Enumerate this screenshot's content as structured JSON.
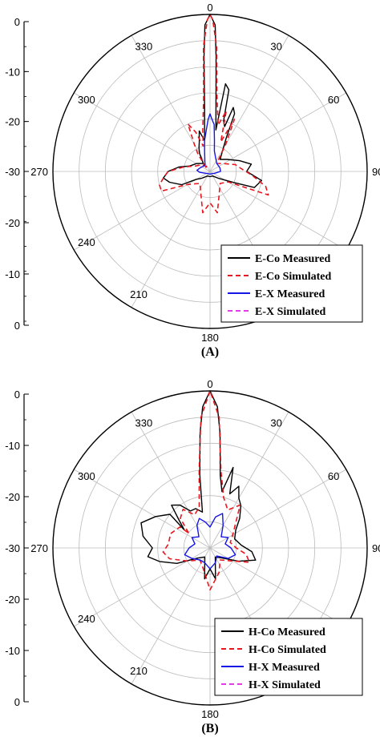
{
  "chart_data": [
    {
      "type": "polar-line",
      "panel_label": "(A)",
      "angle_labels": [
        "0",
        "30",
        "60",
        "90",
        "180",
        "210",
        "240",
        "270",
        "300",
        "330"
      ],
      "radial_tick_labels_upper": [
        "0",
        "-10",
        "-20",
        "-30"
      ],
      "radial_tick_labels_lower": [
        "-20",
        "-10",
        "0"
      ],
      "rlim": [
        -30,
        0
      ],
      "grid": true,
      "legend_position": "bottom-right",
      "series": [
        {
          "name": "E-Co Measured",
          "color": "#000000",
          "dash": "solid",
          "points": [
            [
              -40,
              -28
            ],
            [
              -30,
              -26
            ],
            [
              -25,
              -25
            ],
            [
              -20,
              -24
            ],
            [
              -15,
              -22
            ],
            [
              -10,
              -24
            ],
            [
              -5,
              -18
            ],
            [
              -3,
              -8
            ],
            [
              -2,
              -2
            ],
            [
              0,
              0
            ],
            [
              2,
              -2
            ],
            [
              3,
              -8
            ],
            [
              5,
              -17
            ],
            [
              8,
              -22
            ],
            [
              10,
              -13
            ],
            [
              13,
              -14
            ],
            [
              15,
              -20
            ],
            [
              18,
              -21
            ],
            [
              20,
              -17
            ],
            [
              23,
              -18
            ],
            [
              26,
              -23
            ],
            [
              30,
              -25
            ],
            [
              40,
              -27
            ],
            [
              55,
              -26
            ],
            [
              70,
              -24
            ],
            [
              80,
              -22
            ],
            [
              90,
              -23
            ],
            [
              100,
              -20
            ],
            [
              110,
              -21
            ],
            [
              115,
              -25
            ],
            [
              130,
              -28
            ],
            [
              150,
              -29
            ],
            [
              180,
              -29
            ],
            [
              210,
              -29
            ],
            [
              230,
              -28
            ],
            [
              240,
              -27
            ],
            [
              245,
              -24
            ],
            [
              255,
              -22
            ],
            [
              262,
              -21
            ],
            [
              270,
              -22
            ],
            [
              278,
              -24
            ],
            [
              285,
              -26
            ],
            [
              300,
              -27
            ],
            [
              320,
              -28
            ]
          ]
        },
        {
          "name": "E-Co Simulated",
          "color": "#e8171f",
          "dash": "dashed",
          "points": [
            [
              -45,
              -29
            ],
            [
              -35,
              -26
            ],
            [
              -30,
              -24
            ],
            [
              -25,
              -20
            ],
            [
              -20,
              -22
            ],
            [
              -15,
              -25
            ],
            [
              -10,
              -22
            ],
            [
              -5,
              -16
            ],
            [
              -3,
              -6
            ],
            [
              -1,
              -1
            ],
            [
              0,
              0
            ],
            [
              1,
              -1
            ],
            [
              3,
              -6
            ],
            [
              5,
              -15
            ],
            [
              10,
              -21
            ],
            [
              15,
              -18
            ],
            [
              20,
              -24
            ],
            [
              25,
              -19
            ],
            [
              30,
              -24
            ],
            [
              40,
              -28
            ],
            [
              60,
              -27
            ],
            [
              75,
              -25
            ],
            [
              85,
              -24
            ],
            [
              95,
              -22
            ],
            [
              105,
              -19
            ],
            [
              112,
              -18
            ],
            [
              120,
              -26
            ],
            [
              140,
              -27
            ],
            [
              160,
              -25
            ],
            [
              170,
              -22
            ],
            [
              180,
              -24
            ],
            [
              190,
              -22
            ],
            [
              200,
              -25
            ],
            [
              220,
              -27
            ],
            [
              240,
              -25
            ],
            [
              248,
              -20
            ],
            [
              255,
              -20
            ],
            [
              262,
              -21
            ],
            [
              270,
              -22
            ],
            [
              280,
              -25
            ],
            [
              290,
              -27
            ],
            [
              310,
              -28
            ],
            [
              330,
              -29
            ]
          ]
        },
        {
          "name": "E-X Measured",
          "color": "#1515e6",
          "dash": "solid",
          "points": [
            [
              -15,
              -26
            ],
            [
              -10,
              -24
            ],
            [
              -5,
              -22
            ],
            [
              -2,
              -20
            ],
            [
              0,
              -19
            ],
            [
              2,
              -20
            ],
            [
              5,
              -21
            ],
            [
              8,
              -24
            ],
            [
              12,
              -26
            ],
            [
              20,
              -27
            ],
            [
              40,
              -28
            ],
            [
              70,
              -28
            ],
            [
              90,
              -28
            ],
            [
              110,
              -29
            ],
            [
              180,
              -29.5
            ],
            [
              250,
              -29
            ],
            [
              265,
              -28
            ],
            [
              275,
              -27.5
            ],
            [
              290,
              -28
            ],
            [
              320,
              -28.5
            ]
          ]
        },
        {
          "name": "E-X Simulated",
          "color": "#e23ce8",
          "dash": "dashed",
          "points": [
            [
              0,
              -30
            ],
            [
              90,
              -30
            ],
            [
              180,
              -30
            ],
            [
              270,
              -30
            ]
          ]
        }
      ]
    },
    {
      "type": "polar-line",
      "panel_label": "(B)",
      "angle_labels": [
        "0",
        "30",
        "60",
        "90",
        "180",
        "210",
        "240",
        "270",
        "300",
        "330"
      ],
      "radial_tick_labels_upper": [
        "0",
        "-10",
        "-20",
        "-30"
      ],
      "radial_tick_labels_lower": [
        "-20",
        "-10",
        "0"
      ],
      "rlim": [
        -30,
        0
      ],
      "grid": true,
      "legend_position": "bottom-right",
      "series": [
        {
          "name": "H-Co Measured",
          "color": "#000000",
          "dash": "solid",
          "points": [
            [
              -55,
              -24
            ],
            [
              -48,
              -22
            ],
            [
              -42,
              -19
            ],
            [
              -35,
              -20
            ],
            [
              -28,
              -22
            ],
            [
              -20,
              -22
            ],
            [
              -12,
              -23
            ],
            [
              -8,
              -16
            ],
            [
              -5,
              -8
            ],
            [
              -3,
              -3
            ],
            [
              0,
              0
            ],
            [
              3,
              -3
            ],
            [
              5,
              -8
            ],
            [
              8,
              -16
            ],
            [
              12,
              -19
            ],
            [
              16,
              -14
            ],
            [
              20,
              -19
            ],
            [
              25,
              -17
            ],
            [
              30,
              -19
            ],
            [
              36,
              -20
            ],
            [
              45,
              -22
            ],
            [
              55,
              -24
            ],
            [
              70,
              -25
            ],
            [
              85,
              -24
            ],
            [
              95,
              -22
            ],
            [
              105,
              -21
            ],
            [
              115,
              -24
            ],
            [
              130,
              -27
            ],
            [
              150,
              -28
            ],
            [
              170,
              -24
            ],
            [
              180,
              -26
            ],
            [
              190,
              -24
            ],
            [
              210,
              -28
            ],
            [
              230,
              -27
            ],
            [
              245,
              -23
            ],
            [
              255,
              -20
            ],
            [
              262,
              -18
            ],
            [
              270,
              -19
            ],
            [
              280,
              -17
            ],
            [
              290,
              -16
            ],
            [
              300,
              -18
            ],
            [
              310,
              -20
            ]
          ]
        },
        {
          "name": "H-Co Simulated",
          "color": "#e8171f",
          "dash": "dashed",
          "points": [
            [
              -55,
              -25
            ],
            [
              -45,
              -22
            ],
            [
              -35,
              -21
            ],
            [
              -25,
              -23
            ],
            [
              -15,
              -22
            ],
            [
              -8,
              -15
            ],
            [
              -4,
              -5
            ],
            [
              0,
              0
            ],
            [
              4,
              -5
            ],
            [
              8,
              -15
            ],
            [
              15,
              -20
            ],
            [
              25,
              -22
            ],
            [
              35,
              -20
            ],
            [
              45,
              -23
            ],
            [
              60,
              -25
            ],
            [
              75,
              -26
            ],
            [
              90,
              -25
            ],
            [
              100,
              -23
            ],
            [
              110,
              -22
            ],
            [
              120,
              -25
            ],
            [
              140,
              -27
            ],
            [
              160,
              -25
            ],
            [
              180,
              -22
            ],
            [
              200,
              -26
            ],
            [
              220,
              -27
            ],
            [
              240,
              -25
            ],
            [
              255,
              -22
            ],
            [
              265,
              -21
            ],
            [
              275,
              -22
            ],
            [
              290,
              -22
            ],
            [
              305,
              -23
            ]
          ]
        },
        {
          "name": "H-X Measured",
          "color": "#1515e6",
          "dash": "solid",
          "points": [
            [
              -45,
              -27
            ],
            [
              -30,
              -25
            ],
            [
              -20,
              -24
            ],
            [
              -10,
              -25
            ],
            [
              0,
              -26
            ],
            [
              10,
              -24
            ],
            [
              20,
              -23
            ],
            [
              30,
              -25
            ],
            [
              45,
              -27
            ],
            [
              60,
              -26
            ],
            [
              75,
              -27
            ],
            [
              90,
              -26
            ],
            [
              105,
              -25
            ],
            [
              120,
              -26
            ],
            [
              140,
              -28
            ],
            [
              160,
              -27
            ],
            [
              180,
              -26
            ],
            [
              200,
              -27
            ],
            [
              220,
              -27
            ],
            [
              240,
              -26
            ],
            [
              255,
              -25
            ],
            [
              270,
              -26
            ],
            [
              285,
              -27
            ],
            [
              300,
              -26
            ],
            [
              315,
              -27
            ]
          ]
        },
        {
          "name": "H-X Simulated",
          "color": "#e23ce8",
          "dash": "dashed",
          "points": [
            [
              0,
              -30
            ],
            [
              90,
              -30
            ],
            [
              180,
              -30
            ],
            [
              270,
              -30
            ]
          ]
        }
      ]
    }
  ]
}
